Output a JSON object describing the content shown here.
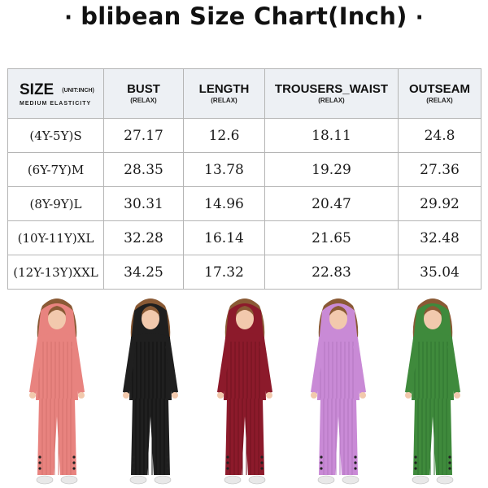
{
  "title": {
    "dot": "·",
    "text": "blibean Size Chart(Inch)"
  },
  "table": {
    "size_header": {
      "label": "SIZE",
      "unit": "(UNIT:INCH)",
      "elasticity": "MEDIUM ELASTICITY"
    },
    "columns": [
      {
        "label": "BUST",
        "sub": "(RELAX)"
      },
      {
        "label": "LENGTH",
        "sub": "(RELAX)"
      },
      {
        "label": "TROUSERS_WAIST",
        "sub": "(RELAX)"
      },
      {
        "label": "OUTSEAM",
        "sub": "(RELAX)"
      }
    ],
    "rows": [
      {
        "size": "(4Y-5Y)S",
        "values": [
          "27.17",
          "12.6",
          "18.11",
          "24.8"
        ]
      },
      {
        "size": "(6Y-7Y)M",
        "values": [
          "28.35",
          "13.78",
          "19.29",
          "27.36"
        ]
      },
      {
        "size": "(8Y-9Y)L",
        "values": [
          "30.31",
          "14.96",
          "20.47",
          "29.92"
        ]
      },
      {
        "size": "(10Y-11Y)XL",
        "values": [
          "32.28",
          "16.14",
          "21.65",
          "32.48"
        ]
      },
      {
        "size": "(12Y-13Y)XXL",
        "values": [
          "34.25",
          "17.32",
          "22.83",
          "35.04"
        ]
      }
    ]
  },
  "models": [
    {
      "name": "pink",
      "color": "#e8837f",
      "shade": "#d4706c"
    },
    {
      "name": "black",
      "color": "#1f1f1f",
      "shade": "#111111"
    },
    {
      "name": "burgundy",
      "color": "#8c1a2b",
      "shade": "#72121f"
    },
    {
      "name": "lavender",
      "color": "#c98ad6",
      "shade": "#b276c0"
    },
    {
      "name": "green",
      "color": "#3f8a3c",
      "shade": "#2f7430"
    }
  ]
}
